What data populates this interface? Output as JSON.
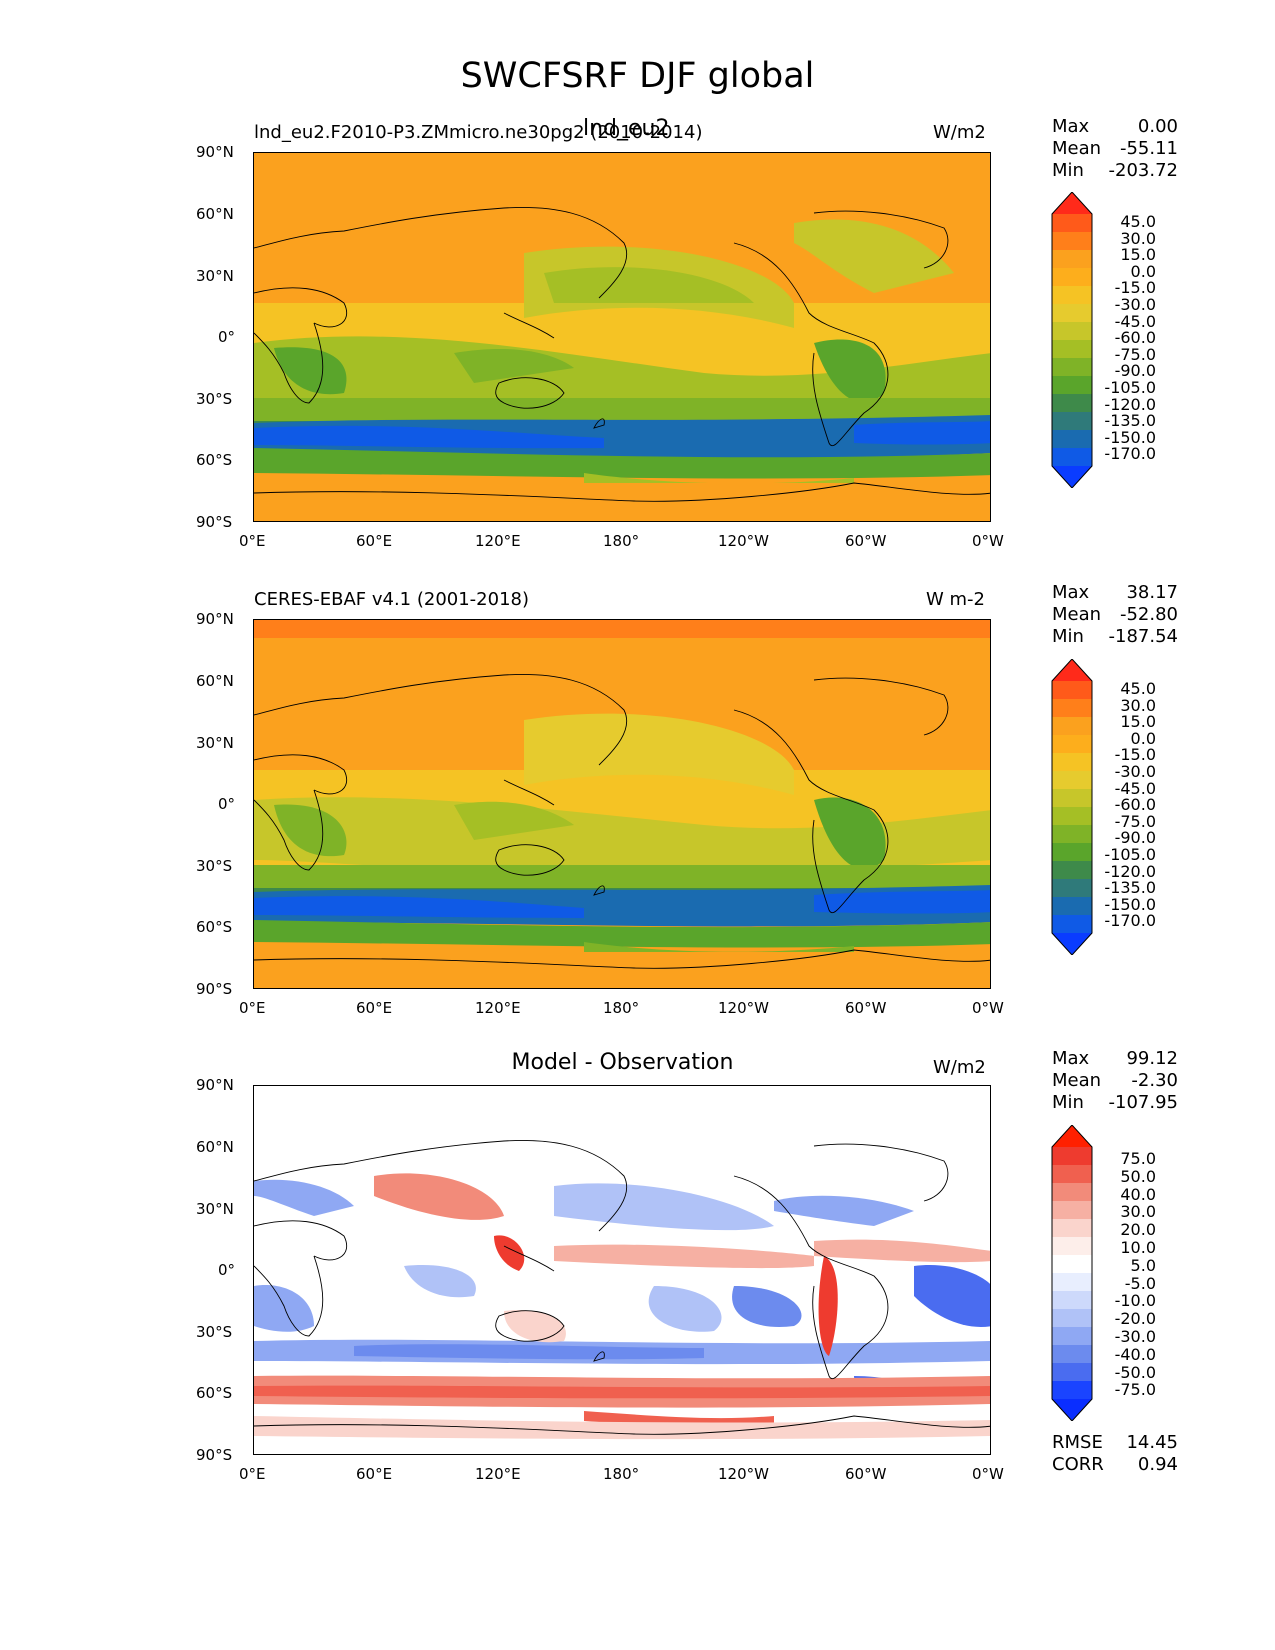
{
  "title": "SWCFSRF DJF global",
  "x_ticks": [
    "0°E",
    "60°E",
    "120°E",
    "180°",
    "120°W",
    "60°W",
    "0°W"
  ],
  "y_ticks": [
    "90°N",
    "60°N",
    "30°N",
    "0°",
    "30°S",
    "60°S",
    "90°S"
  ],
  "panels": [
    {
      "left_title": "lnd_eu2.F2010-P3.ZMmicro.ne30pg2 (2010-2014)",
      "center_title": "lnd_eu2",
      "units": "W/m2",
      "stats": {
        "max_label": "Max",
        "max": "0.00",
        "mean_label": "Mean",
        "mean": "-55.11",
        "min_label": "Min",
        "min": "-203.72"
      },
      "colorbar_labels": [
        "45.0",
        "30.0",
        "15.0",
        "0.0",
        "-15.0",
        "-30.0",
        "-45.0",
        "-60.0",
        "-75.0",
        "-90.0",
        "-105.0",
        "-120.0",
        "-135.0",
        "-150.0",
        "-170.0"
      ]
    },
    {
      "left_title": "CERES-EBAF v4.1 (2001-2018)",
      "center_title": "",
      "units": "W m-2",
      "stats": {
        "max_label": "Max",
        "max": "38.17",
        "mean_label": "Mean",
        "mean": "-52.80",
        "min_label": "Min",
        "min": "-187.54"
      },
      "colorbar_labels": [
        "45.0",
        "30.0",
        "15.0",
        "0.0",
        "-15.0",
        "-30.0",
        "-45.0",
        "-60.0",
        "-75.0",
        "-90.0",
        "-105.0",
        "-120.0",
        "-135.0",
        "-150.0",
        "-170.0"
      ]
    },
    {
      "left_title": "",
      "center_title": "Model - Observation",
      "units": "W/m2",
      "stats": {
        "max_label": "Max",
        "max": "99.12",
        "mean_label": "Mean",
        "mean": "-2.30",
        "min_label": "Min",
        "min": "-107.95"
      },
      "colorbar_labels": [
        "75.0",
        "50.0",
        "40.0",
        "30.0",
        "20.0",
        "10.0",
        "5.0",
        "-5.0",
        "-10.0",
        "-20.0",
        "-30.0",
        "-40.0",
        "-50.0",
        "-75.0"
      ],
      "metrics": {
        "rmse_label": "RMSE",
        "rmse": "14.45",
        "corr_label": "CORR",
        "corr": "0.94"
      }
    }
  ],
  "colors": {
    "field_scale": [
      "#ff2a1a",
      "#ff5a1a",
      "#ff7f1a",
      "#fba11e",
      "#fdae1c",
      "#f5c324",
      "#e6cb2e",
      "#c7c62a",
      "#a5bf25",
      "#7fb327",
      "#5aa52b",
      "#3e8a4a",
      "#2f7a7a",
      "#1a6bb0",
      "#0f5ae6",
      "#0a3cff"
    ],
    "diff_scale": [
      "#ff2000",
      "#ee3b2f",
      "#f0604f",
      "#f28b7a",
      "#f6b0a3",
      "#fad4cc",
      "#fdeeea",
      "#ffffff",
      "#e8eefe",
      "#cdd9fb",
      "#b0c2f7",
      "#8fa8f3",
      "#6c8bee",
      "#4a6cf0",
      "#1a44ff",
      "#0a2eff"
    ]
  }
}
